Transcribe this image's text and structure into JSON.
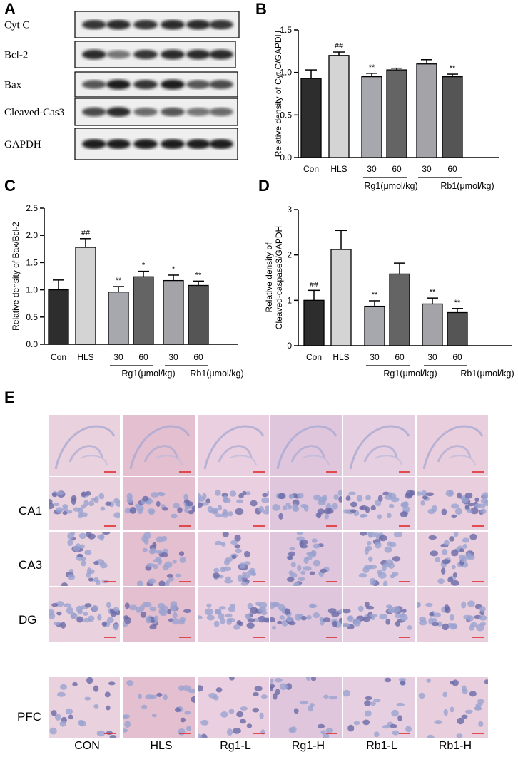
{
  "panels": {
    "A": "A",
    "B": "B",
    "C": "C",
    "D": "D",
    "E": "E"
  },
  "western_blot": {
    "labels": [
      "Cyt C",
      "Bcl-2",
      "Bax",
      "Cleaved-Cas3",
      "GAPDH"
    ],
    "band_intensity": [
      [
        0.85,
        0.9,
        0.85,
        0.9,
        0.9,
        0.85
      ],
      [
        0.9,
        0.55,
        0.85,
        0.9,
        0.9,
        0.9
      ],
      [
        0.7,
        0.95,
        0.85,
        0.95,
        0.7,
        0.75
      ],
      [
        0.75,
        0.9,
        0.6,
        0.7,
        0.55,
        0.6
      ],
      [
        0.95,
        0.95,
        0.95,
        0.95,
        0.95,
        0.95
      ]
    ]
  },
  "chart_data": [
    {
      "panel": "B",
      "type": "bar",
      "categories": [
        "Con",
        "HLS",
        "30",
        "60",
        "30",
        "60"
      ],
      "values": [
        0.93,
        1.2,
        0.95,
        1.03,
        1.1,
        0.95
      ],
      "errors": [
        0.1,
        0.04,
        0.04,
        0.02,
        0.05,
        0.03
      ],
      "significance": [
        "",
        "##",
        "**",
        "",
        "",
        "**"
      ],
      "colors": [
        "#2d2d2d",
        "#d4d4d4",
        "#a7a7ae",
        "#646464",
        "#a3a3a8",
        "#555555"
      ],
      "ylabel": "Relative density of Cyt C/GAPDH",
      "yticks": [
        "0.0",
        "0.5",
        "1.0",
        "1.5"
      ],
      "ylim": [
        0,
        1.5
      ],
      "groups": [
        "Rg1(μmol/kg)",
        "Rb1(μmol/kg)"
      ]
    },
    {
      "panel": "C",
      "type": "bar",
      "categories": [
        "Con",
        "HLS",
        "30",
        "60",
        "30",
        "60"
      ],
      "values": [
        1.0,
        1.78,
        0.96,
        1.24,
        1.17,
        1.08
      ],
      "errors": [
        0.18,
        0.16,
        0.1,
        0.1,
        0.1,
        0.08
      ],
      "significance": [
        "",
        "##",
        "**",
        "*",
        "*",
        "**"
      ],
      "colors": [
        "#2d2d2d",
        "#d4d4d4",
        "#a7a7ae",
        "#646464",
        "#a3a3a8",
        "#555555"
      ],
      "ylabel": "Relative density of Bax/Bcl-2",
      "yticks": [
        "0.0",
        "0.5",
        "1.0",
        "1.5",
        "2.0",
        "2.5"
      ],
      "ylim": [
        0,
        2.5
      ],
      "groups": [
        "Rg1(μmol/kg)",
        "Rb1(μmol/kg)"
      ]
    },
    {
      "panel": "D",
      "type": "bar",
      "categories": [
        "Con",
        "HLS",
        "30",
        "60",
        "30",
        "60"
      ],
      "values": [
        1.0,
        2.12,
        0.87,
        1.58,
        0.92,
        0.73
      ],
      "errors": [
        0.22,
        0.42,
        0.12,
        0.24,
        0.13,
        0.09
      ],
      "significance": [
        "##",
        "",
        "**",
        "",
        "**",
        "**"
      ],
      "colors": [
        "#2d2d2d",
        "#d4d4d4",
        "#a7a7ae",
        "#646464",
        "#a3a3a8",
        "#555555"
      ],
      "ylabel_line1": "Relative density of",
      "ylabel_line2": "Cleaved-caspase3/GAPDH",
      "yticks": [
        "0",
        "1",
        "2",
        "3"
      ],
      "ylim": [
        0,
        3
      ],
      "groups": [
        "Rg1(μmol/kg)",
        "Rb1(μmol/kg)"
      ]
    }
  ],
  "histology": {
    "row_labels": [
      "CA1",
      "CA3",
      "DG",
      "PFC"
    ],
    "column_labels": [
      "CON",
      "HLS",
      "Rg1-L",
      "Rg1-H",
      "Rb1-L",
      "Rb1-H"
    ]
  }
}
